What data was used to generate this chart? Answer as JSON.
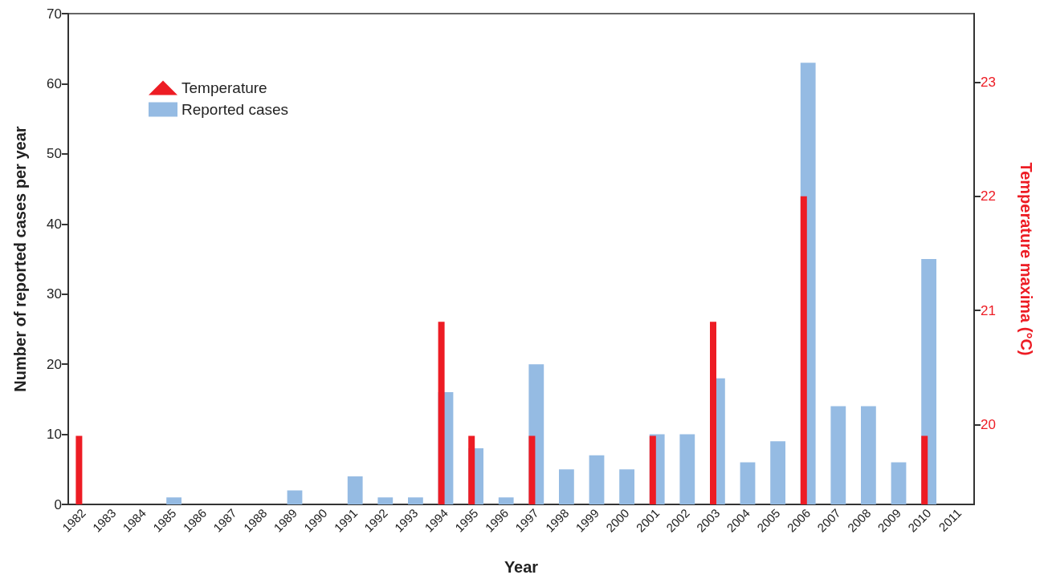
{
  "chart_data": {
    "type": "bar",
    "xlabel": "Year",
    "ylabel": "Number of reported cases per year",
    "y2label": "Temperature maxima (°C)",
    "categories": [
      "1982",
      "1983",
      "1984",
      "1985",
      "1986",
      "1987",
      "1988",
      "1989",
      "1990",
      "1991",
      "1992",
      "1993",
      "1994",
      "1995",
      "1996",
      "1997",
      "1998",
      "1999",
      "2000",
      "2001",
      "2002",
      "2003",
      "2004",
      "2005",
      "2006",
      "2007",
      "2008",
      "2009",
      "2010",
      "2011"
    ],
    "series": [
      {
        "name": "Temperature",
        "type": "bar",
        "axis": "y2",
        "marker": "triangle",
        "color": "#ed1c24",
        "values": [
          19.9,
          null,
          null,
          null,
          null,
          null,
          null,
          null,
          null,
          null,
          null,
          null,
          20.9,
          19.9,
          null,
          19.9,
          null,
          null,
          null,
          19.9,
          null,
          20.9,
          null,
          null,
          22.0,
          null,
          null,
          null,
          19.9,
          null
        ]
      },
      {
        "name": "Reported cases",
        "color": "#95bbe3",
        "values": [
          0,
          0,
          0,
          1,
          0,
          0,
          0,
          2,
          0,
          4,
          1,
          1,
          16,
          8,
          1,
          20,
          5,
          7,
          5,
          10,
          10,
          18,
          6,
          9,
          63,
          14,
          14,
          6,
          35,
          0
        ]
      }
    ],
    "ylim": [
      0,
      70
    ],
    "yticks": [
      0,
      10,
      20,
      30,
      40,
      50,
      60,
      70
    ],
    "y2lim": [
      19.3,
      23.6
    ],
    "y2ticks": [
      20,
      21,
      22,
      23
    ],
    "grid": false,
    "legend": "top left"
  }
}
